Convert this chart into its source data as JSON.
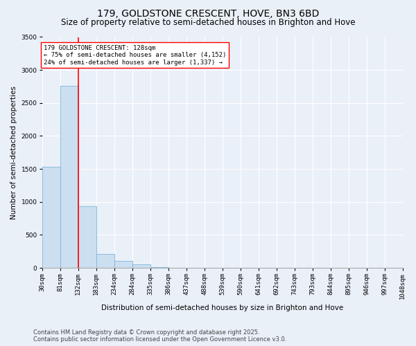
{
  "title": "179, GOLDSTONE CRESCENT, HOVE, BN3 6BD",
  "subtitle": "Size of property relative to semi-detached houses in Brighton and Hove",
  "xlabel": "Distribution of semi-detached houses by size in Brighton and Hove",
  "ylabel": "Number of semi-detached properties",
  "bins": [
    "30sqm",
    "81sqm",
    "132sqm",
    "183sqm",
    "234sqm",
    "284sqm",
    "335sqm",
    "386sqm",
    "437sqm",
    "488sqm",
    "539sqm",
    "590sqm",
    "641sqm",
    "692sqm",
    "743sqm",
    "793sqm",
    "844sqm",
    "895sqm",
    "946sqm",
    "997sqm",
    "1048sqm"
  ],
  "bar_heights": [
    1530,
    2760,
    940,
    210,
    110,
    55,
    10,
    5,
    2,
    2,
    2,
    1,
    1,
    0,
    0,
    0,
    0,
    0,
    0,
    0
  ],
  "bar_color": "#ccdff0",
  "bar_edge_color": "#7ab8d9",
  "red_line_x": 2,
  "annotation_title": "179 GOLDSTONE CRESCENT: 128sqm",
  "annotation_line1": "← 75% of semi-detached houses are smaller (4,152)",
  "annotation_line2": "24% of semi-detached houses are larger (1,337) →",
  "annotation_box_color": "white",
  "annotation_box_edge_color": "red",
  "ylim": [
    0,
    3500
  ],
  "yticks": [
    0,
    500,
    1000,
    1500,
    2000,
    2500,
    3000,
    3500
  ],
  "footer_line1": "Contains HM Land Registry data © Crown copyright and database right 2025.",
  "footer_line2": "Contains public sector information licensed under the Open Government Licence v3.0.",
  "bg_color": "#eaf0f8",
  "plot_bg_color": "#eaf0f8",
  "title_fontsize": 10,
  "subtitle_fontsize": 8.5,
  "axis_label_fontsize": 7.5,
  "tick_fontsize": 6.5,
  "annotation_fontsize": 6.5,
  "footer_fontsize": 6.0
}
